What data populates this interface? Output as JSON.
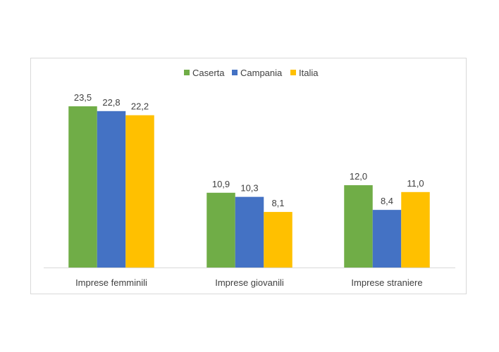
{
  "chart_data": {
    "type": "bar",
    "categories": [
      "Imprese femminili",
      "Imprese giovanili",
      "Imprese straniere"
    ],
    "series": [
      {
        "name": "Caserta",
        "color": "#70ad47",
        "values": [
          23.5,
          10.9,
          12.0
        ],
        "labels": [
          "23,5",
          "10,9",
          "12,0"
        ]
      },
      {
        "name": "Campania",
        "color": "#4472c4",
        "values": [
          22.8,
          10.3,
          8.4
        ],
        "labels": [
          "22,8",
          "10,3",
          "8,4"
        ]
      },
      {
        "name": "Italia",
        "color": "#ffc000",
        "values": [
          22.2,
          8.1,
          11.0
        ],
        "labels": [
          "22,2",
          "8,1",
          "11,0"
        ]
      }
    ],
    "ylim": [
      0,
      26
    ],
    "legend": "top",
    "grid": false
  }
}
